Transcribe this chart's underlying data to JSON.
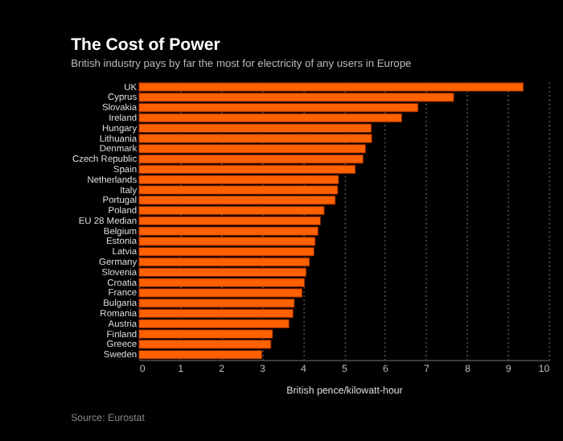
{
  "chart_data": {
    "type": "bar",
    "orientation": "horizontal",
    "title": "The Cost of Power",
    "subtitle": "British industry pays by far the most for electricity of any users in Europe",
    "xlabel": "British pence/kilowatt-hour",
    "categories": [
      "UK",
      "Cyprus",
      "Slovakia",
      "Ireland",
      "Hungary",
      "Lithuania",
      "Denmark",
      "Czech Republic",
      "Spain",
      "Netherlands",
      "Italy",
      "Portugal",
      "Poland",
      "EU 28 Median",
      "Belgium",
      "Estonia",
      "Latvia",
      "Germany",
      "Slovenia",
      "Croatia",
      "France",
      "Bulgaria",
      "Romania",
      "Austria",
      "Finland",
      "Greece",
      "Sweden"
    ],
    "values": [
      9.38,
      7.68,
      6.81,
      6.41,
      5.67,
      5.68,
      5.53,
      5.47,
      5.28,
      4.87,
      4.85,
      4.79,
      4.52,
      4.43,
      4.37,
      4.3,
      4.27,
      4.16,
      4.08,
      4.04,
      3.98,
      3.79,
      3.76,
      3.66,
      3.26,
      3.22,
      3.0
    ],
    "color": "#ff6000",
    "xlim": [
      0,
      10
    ],
    "xticks": [
      0,
      1,
      2,
      3,
      4,
      5,
      6,
      7,
      8,
      9,
      10
    ],
    "grid": "x",
    "annotations": [
      "Source: Eurostat"
    ]
  }
}
